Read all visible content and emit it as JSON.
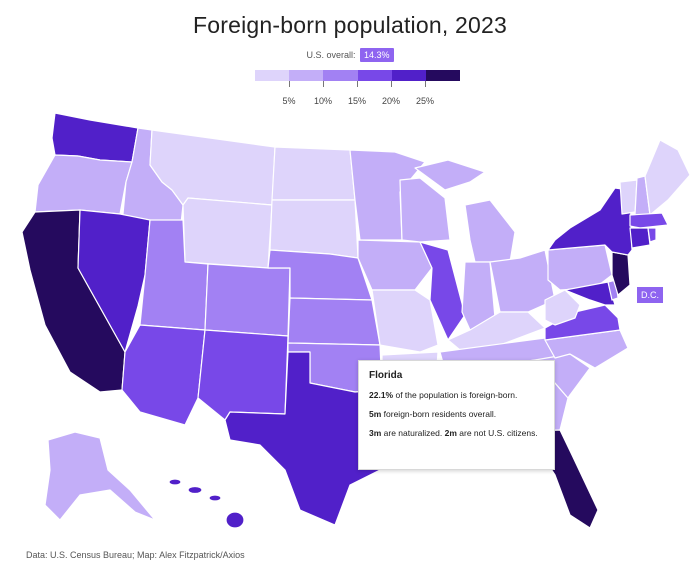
{
  "title": "Foreign-born population, 2023",
  "overall": {
    "label": "U.S. overall:",
    "value": "14.3%"
  },
  "legend": {
    "colors": [
      "#ded4fb",
      "#c3aef8",
      "#a281f3",
      "#7848e8",
      "#5120c9",
      "#250a5e"
    ],
    "labels": [
      "5%",
      "10%",
      "15%",
      "20%",
      "25%"
    ]
  },
  "dc_label": "D.C.",
  "tooltip": {
    "state": "Florida",
    "line1_bold": "22.1%",
    "line1_rest": " of the population is foreign-born.",
    "line2_bold": "5m",
    "line2_rest": " foreign-born residents overall.",
    "line3_bold1": "3m",
    "line3_mid": " are naturalized. ",
    "line3_bold2": "2m",
    "line3_rest": " are not U.S. citizens."
  },
  "source": "Data: U.S. Census Bureau; Map: Alex Fitzpatrick/Axios",
  "colors": {
    "c1": "#ded4fb",
    "c2": "#c3aef8",
    "c3": "#a281f3",
    "c4": "#7848e8",
    "c5": "#5120c9",
    "c6": "#250a5e"
  }
}
